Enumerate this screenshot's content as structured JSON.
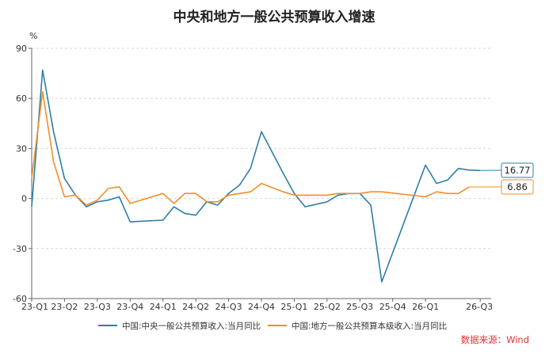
{
  "chart_data": {
    "type": "line",
    "title": "中央和地方一般公共预算收入增速",
    "ylabel": "%",
    "ylim": [
      -60,
      90
    ],
    "yticks": [
      -60,
      -30,
      0,
      30,
      60,
      90
    ],
    "x": [
      "23-01",
      "23-02",
      "23-03",
      "23-04",
      "23-05",
      "23-06",
      "23-07",
      "23-08",
      "23-09",
      "23-10",
      "23-11",
      "23-12",
      "24-01",
      "24-02",
      "24-03",
      "24-04",
      "24-05",
      "24-06",
      "24-07",
      "24-08",
      "24-09",
      "24-10",
      "24-11",
      "24-12",
      "25-01",
      "25-02",
      "25-03",
      "25-04",
      "25-05",
      "25-06",
      "25-07",
      "25-08",
      "25-09",
      "25-10",
      "25-11",
      "25-12",
      "26-01",
      "26-02",
      "26-03",
      "26-04",
      "26-05",
      "26-06",
      "26-07"
    ],
    "xtick_labels": [
      "23-Q1",
      "23-Q2",
      "23-Q3",
      "23-Q4",
      "24-Q1",
      "24-Q2",
      "24-Q3",
      "24-Q4",
      "25-Q1",
      "25-Q2",
      "25-Q3",
      "25-Q4",
      "26-Q1",
      "26-Q3"
    ],
    "xtick_index": [
      0,
      3,
      6,
      9,
      12,
      15,
      18,
      21,
      24,
      27,
      30,
      33,
      36,
      41
    ],
    "grid": "horizontal dashed",
    "legend_position": "bottom",
    "series": [
      {
        "name": "中国:中央一般公共预算收入:当月同比",
        "color": "#2e7ea6",
        "values": [
          -5,
          77,
          40,
          12,
          2,
          -5,
          -2,
          -1,
          1,
          -14,
          null,
          null,
          -13,
          -5,
          -9,
          -10,
          -2,
          -4,
          3,
          8,
          18,
          40,
          null,
          15,
          3,
          -5,
          null,
          -2,
          2,
          3,
          3,
          -4,
          -50,
          null,
          null,
          null,
          20,
          9,
          11,
          18,
          17,
          16.77,
          null
        ]
      },
      {
        "name": "中国:地方一般公共预算本级收入:当月同比",
        "color": "#f28e2b",
        "values": [
          12,
          64,
          22,
          1,
          2,
          -4,
          -1,
          6,
          7,
          -3,
          null,
          null,
          3,
          -3,
          3,
          3,
          -2,
          -2,
          2,
          3,
          4,
          9,
          null,
          4,
          2,
          2,
          null,
          2,
          3,
          3,
          3,
          4,
          4,
          null,
          null,
          null,
          1,
          4,
          3,
          3,
          6.86,
          null,
          null
        ]
      }
    ],
    "end_labels": [
      "16.77",
      "6.86"
    ]
  },
  "source": "数据来源：Wind"
}
